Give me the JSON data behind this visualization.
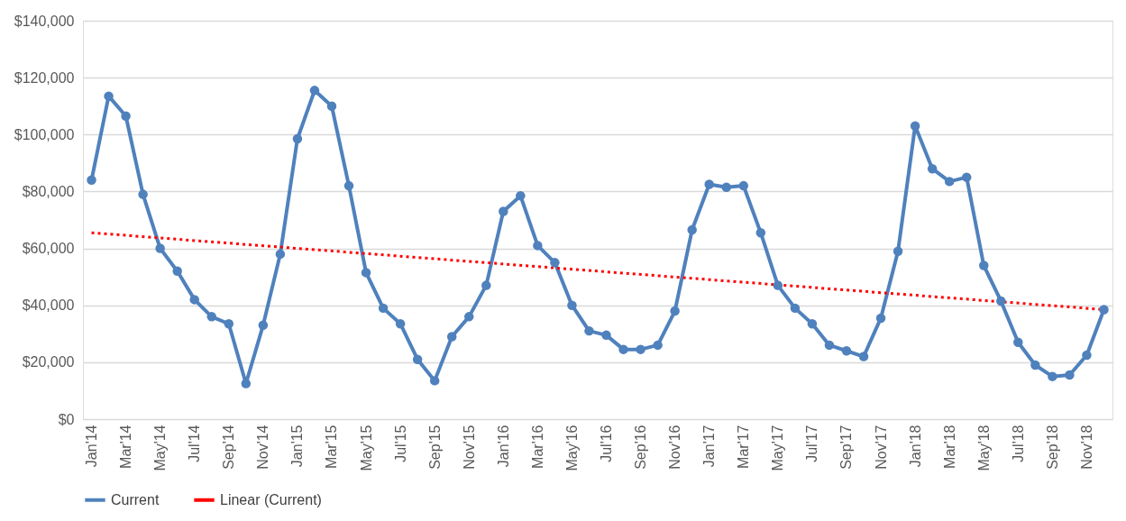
{
  "chart_data": {
    "type": "line",
    "categories": [
      "Jan'14",
      null,
      "Mar'14",
      null,
      "May'14",
      null,
      "Jul'14",
      null,
      "Sep'14",
      null,
      "Nov'14",
      null,
      "Jan'15",
      null,
      "Mar'15",
      null,
      "May'15",
      null,
      "Jul'15",
      null,
      "Sep'15",
      null,
      "Nov'15",
      null,
      "Jan'16",
      null,
      "Mar'16",
      null,
      "May'16",
      null,
      "Jul'16",
      null,
      "Sep'16",
      null,
      "Nov'16",
      null,
      "Jan'17",
      null,
      "Mar'17",
      null,
      "May'17",
      null,
      "Jul'17",
      null,
      "Sep'17",
      null,
      "Nov'17",
      null,
      "Jan'18",
      null,
      "Mar'18",
      null,
      "May'18",
      null,
      "Jul'18",
      null,
      "Sep'18",
      null,
      "Nov'18",
      null
    ],
    "series": [
      {
        "name": "Current",
        "color": "#4f81bd",
        "marker": "circle",
        "line_style": "solid",
        "values": [
          84000,
          113500,
          106500,
          79000,
          60000,
          52000,
          42000,
          36000,
          33500,
          12500,
          33000,
          58000,
          98500,
          115500,
          110000,
          82000,
          51500,
          39000,
          33500,
          21000,
          13500,
          29000,
          36000,
          47000,
          73000,
          78500,
          61000,
          55000,
          40000,
          31000,
          29500,
          24500,
          24500,
          26000,
          38000,
          66500,
          82500,
          81500,
          82000,
          65500,
          47000,
          39000,
          33500,
          26000,
          24000,
          22000,
          35500,
          59000,
          103000,
          88000,
          83500,
          85000,
          54000,
          41500,
          27000,
          19000,
          15000,
          15500,
          22500,
          38500
        ]
      },
      {
        "name": "Linear (Current)",
        "type": "line",
        "color": "#ff0000",
        "marker": "none",
        "line_style": "dotted",
        "values": [
          65500,
          null,
          null,
          null,
          null,
          null,
          null,
          null,
          null,
          null,
          null,
          null,
          null,
          null,
          null,
          null,
          null,
          null,
          null,
          null,
          null,
          null,
          null,
          null,
          null,
          null,
          null,
          null,
          null,
          null,
          null,
          null,
          null,
          null,
          null,
          null,
          null,
          null,
          null,
          null,
          null,
          null,
          null,
          null,
          null,
          null,
          null,
          null,
          null,
          null,
          null,
          null,
          null,
          null,
          null,
          null,
          null,
          null,
          null,
          38500
        ]
      }
    ],
    "ylim": [
      0,
      140000
    ],
    "yticks": [
      {
        "value": 0,
        "label": "$0"
      },
      {
        "value": 20000,
        "label": "$20,000"
      },
      {
        "value": 40000,
        "label": "$40,000"
      },
      {
        "value": 60000,
        "label": "$60,000"
      },
      {
        "value": 80000,
        "label": "$80,000"
      },
      {
        "value": 100000,
        "label": "$100,000"
      },
      {
        "value": 120000,
        "label": "$120,000"
      },
      {
        "value": 140000,
        "label": "$140,000"
      }
    ],
    "grid": "y",
    "legend": "bottom"
  }
}
